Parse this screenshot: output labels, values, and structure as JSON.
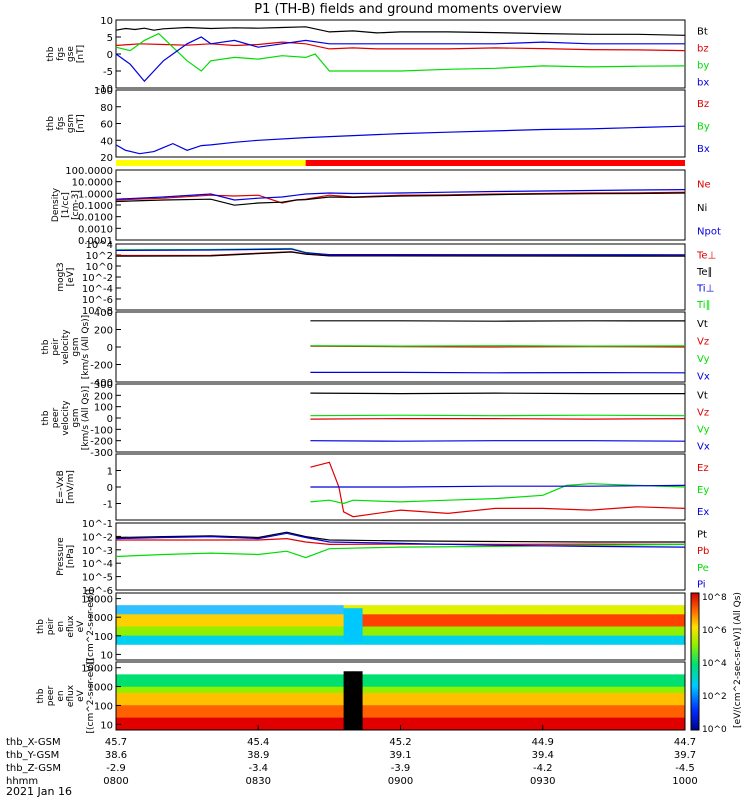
{
  "title": "P1 (TH-B) fields and ground moments overview",
  "date": "2021 Jan 16",
  "colors": {
    "black": "#000000",
    "red": "#e00000",
    "green": "#00dd00",
    "blue": "#0000e0",
    "bar_yellow": "#ffff00",
    "bar_red": "#ff0000"
  },
  "time_axis": {
    "ticks": [
      "0800",
      "0830",
      "0900",
      "0930",
      "1000"
    ],
    "rows": [
      {
        "label": "thb_X-GSM",
        "values": [
          "45.7",
          "45.4",
          "45.2",
          "44.9",
          "44.7"
        ]
      },
      {
        "label": "thb_Y-GSM",
        "values": [
          "38.6",
          "38.9",
          "39.1",
          "39.4",
          "39.7"
        ]
      },
      {
        "label": "thb_Z-GSM",
        "values": [
          "-2.9",
          "-3.4",
          "-3.9",
          "-4.2",
          "-4.5"
        ]
      },
      {
        "label": "hhmm",
        "values": []
      }
    ]
  },
  "colorbar": {
    "unit_label": "[eV/(cm^2-sec-sr-eV)] (All Qs)",
    "tick_labels": [
      "10^8",
      "10^6",
      "10^4",
      "10^2",
      "10^0"
    ]
  },
  "chart_data": [
    {
      "type": "line",
      "ylabel": [
        "thb",
        "fgs",
        "gse",
        "[nT]"
      ],
      "ylim": [
        -10,
        10
      ],
      "yticks": [
        "10",
        "5",
        "0",
        "-5",
        "-10"
      ],
      "series": [
        {
          "name": "Bt",
          "color": "black",
          "x": [
            0,
            2,
            4,
            6,
            8,
            10,
            15,
            20,
            25,
            30,
            35,
            40,
            45,
            50,
            55,
            60,
            70,
            80,
            90,
            100,
            110,
            120
          ],
          "values": [
            7,
            7.5,
            7.2,
            7.6,
            7,
            7.4,
            7.8,
            7.5,
            7.7,
            7.6,
            7.8,
            8,
            6.5,
            6.8,
            6.2,
            6.5,
            6.5,
            6.3,
            6,
            5.8,
            5.8,
            5.5
          ]
        },
        {
          "name": "bz",
          "color": "red",
          "x": [
            0,
            5,
            10,
            15,
            20,
            25,
            30,
            35,
            40,
            45,
            50,
            55,
            60,
            70,
            80,
            90,
            100,
            110,
            120
          ],
          "values": [
            2.5,
            3,
            2.8,
            2.6,
            3,
            2.5,
            2.8,
            3.5,
            3,
            1.5,
            1.8,
            1.5,
            1.5,
            1.5,
            1.8,
            1.6,
            1.3,
            1.2,
            1
          ]
        },
        {
          "name": "by",
          "color": "green",
          "x": [
            0,
            3,
            6,
            9,
            12,
            15,
            18,
            20,
            25,
            30,
            35,
            40,
            42,
            45,
            50,
            60,
            70,
            80,
            90,
            100,
            110,
            120
          ],
          "values": [
            2,
            1,
            4,
            6,
            2,
            -2,
            -5,
            -2,
            -1,
            -1.5,
            -0.5,
            -1,
            0,
            -5,
            -5,
            -5,
            -4.5,
            -4.2,
            -3.5,
            -3.8,
            -3.6,
            -3.5
          ]
        },
        {
          "name": "bx",
          "color": "blue",
          "x": [
            0,
            3,
            6,
            8,
            10,
            12,
            15,
            18,
            20,
            25,
            30,
            35,
            40,
            45,
            50,
            60,
            70,
            80,
            90,
            100,
            110,
            120
          ],
          "values": [
            0,
            -3,
            -8,
            -5,
            -2,
            0,
            3,
            5,
            3,
            4,
            2,
            3,
            4,
            3,
            3,
            3,
            3,
            3,
            3.5,
            3,
            3,
            3
          ]
        }
      ]
    },
    {
      "type": "line",
      "ylabel": [
        "thb",
        "fgs",
        "gsm",
        "[nT]"
      ],
      "ylim": [
        0,
        100
      ],
      "yticks": [
        "100",
        "80",
        "60",
        "40",
        "20"
      ],
      "series_labels": [
        {
          "name": "Bz",
          "color": "red"
        },
        {
          "name": "By",
          "color": "green"
        },
        {
          "name": "Bx",
          "color": "blue"
        }
      ],
      "series": [
        {
          "name": "Bx",
          "color": "blue",
          "x": [
            0,
            2,
            5,
            8,
            10,
            12,
            15,
            18,
            20,
            25,
            30,
            40,
            50,
            60,
            70,
            80,
            90,
            100,
            110,
            120
          ],
          "values": [
            18,
            10,
            5,
            8,
            14,
            20,
            10,
            17,
            18,
            22,
            25,
            29,
            32,
            35,
            37,
            39,
            41,
            42,
            44,
            46
          ]
        }
      ]
    },
    {
      "type": "line",
      "ylabel": [
        "Density",
        "[1/cc]",
        "[cm-3]"
      ],
      "yscale": "log",
      "ylim": [
        0.0001,
        1000
      ],
      "yticks": [
        "100.0000",
        "10.0000",
        "1.0000",
        "0.1000",
        "0.0100",
        "0.0010",
        "0.0001"
      ],
      "series": [
        {
          "name": "Ne",
          "color": "red",
          "x": [
            0,
            10,
            20,
            25,
            30,
            35,
            38,
            40,
            45,
            50,
            60,
            70,
            80,
            90,
            100,
            110,
            120
          ],
          "values": [
            1,
            1.5,
            3,
            2.5,
            3,
            0.5,
            1,
            1.2,
            3,
            2,
            3,
            3.2,
            4,
            4.5,
            5,
            5.2,
            6
          ]
        },
        {
          "name": "Ni",
          "color": "black",
          "x": [
            0,
            10,
            20,
            25,
            30,
            35,
            38,
            40,
            45,
            50,
            60,
            70,
            80,
            90,
            100,
            110,
            120
          ],
          "values": [
            0.7,
            1,
            1.2,
            0.3,
            0.5,
            0.6,
            1,
            1.1,
            2,
            1.8,
            2.5,
            2.8,
            3.5,
            4,
            4.3,
            4.5,
            5
          ]
        },
        {
          "name": "Npot",
          "color": "blue",
          "x": [
            0,
            10,
            20,
            25,
            30,
            35,
            38,
            40,
            45,
            50,
            60,
            70,
            80,
            90,
            100,
            110,
            120
          ],
          "values": [
            1.2,
            2,
            4,
            1,
            1.5,
            2,
            3,
            4,
            5,
            4.5,
            5,
            6,
            7,
            8,
            9,
            10,
            11
          ]
        }
      ]
    },
    {
      "type": "line",
      "ylabel": [
        "mogt3",
        "[eV]"
      ],
      "yscale": "log",
      "ylim": [
        1e-08,
        10000
      ],
      "yticks": [
        "10^4",
        "10^2",
        "10^0",
        "10^-2",
        "10^-4",
        "10^-6",
        "10^-8"
      ],
      "series_labels": [
        {
          "name": "Te⊥",
          "color": "red"
        },
        {
          "name": "Te∥",
          "color": "black"
        },
        {
          "name": "Ti⊥",
          "color": "blue"
        },
        {
          "name": "Ti∥",
          "color": "green"
        }
      ],
      "series": [
        {
          "name": "Ti∥",
          "color": "green",
          "x": [
            0,
            20,
            37,
            40,
            45,
            120
          ],
          "values": [
            900,
            1000,
            1500,
            300,
            100,
            100
          ]
        },
        {
          "name": "Te⊥",
          "color": "red",
          "x": [
            0,
            20,
            37,
            40,
            45,
            120
          ],
          "values": [
            80,
            90,
            400,
            150,
            80,
            70
          ]
        },
        {
          "name": "Te∥",
          "color": "black",
          "x": [
            0,
            20,
            37,
            40,
            45,
            120
          ],
          "values": [
            60,
            70,
            350,
            140,
            70,
            60
          ]
        },
        {
          "name": "Ti⊥",
          "color": "blue",
          "x": [
            0,
            20,
            37,
            40,
            45,
            120
          ],
          "values": [
            700,
            800,
            1200,
            250,
            120,
            110
          ]
        }
      ]
    },
    {
      "type": "line",
      "ylabel": [
        "thb",
        "peir",
        "velocity",
        "gsm",
        "[km/s (All Qs)]"
      ],
      "ylim": [
        -400,
        400
      ],
      "yticks": [
        "400",
        "200",
        "0",
        "-200",
        "-400"
      ],
      "series": [
        {
          "name": "Vt",
          "color": "black",
          "x": [
            41,
            60,
            80,
            100,
            120
          ],
          "values": [
            300,
            300,
            295,
            300,
            298
          ]
        },
        {
          "name": "Vz",
          "color": "red",
          "x": [
            41,
            60,
            80,
            100,
            120
          ],
          "values": [
            10,
            5,
            0,
            5,
            0
          ]
        },
        {
          "name": "Vy",
          "color": "green",
          "x": [
            41,
            60,
            80,
            100,
            120
          ],
          "values": [
            15,
            10,
            15,
            10,
            12
          ]
        },
        {
          "name": "Vx",
          "color": "blue",
          "x": [
            41,
            60,
            80,
            100,
            120
          ],
          "values": [
            -290,
            -290,
            -295,
            -292,
            -295
          ]
        }
      ]
    },
    {
      "type": "line",
      "ylabel": [
        "thb",
        "peer",
        "velocity",
        "gsm",
        "[km/s (All Qs)]"
      ],
      "ylim": [
        -300,
        300
      ],
      "yticks": [
        "300",
        "200",
        "100",
        "0",
        "-100",
        "-200",
        "-300"
      ],
      "series": [
        {
          "name": "Vt",
          "color": "black",
          "x": [
            41,
            60,
            80,
            100,
            120
          ],
          "values": [
            220,
            215,
            220,
            215,
            215
          ]
        },
        {
          "name": "Vz",
          "color": "red",
          "x": [
            41,
            60,
            80,
            100,
            120
          ],
          "values": [
            -10,
            -5,
            -5,
            -10,
            -5
          ]
        },
        {
          "name": "Vy",
          "color": "green",
          "x": [
            41,
            60,
            80,
            100,
            120
          ],
          "values": [
            20,
            25,
            20,
            25,
            20
          ]
        },
        {
          "name": "Vx",
          "color": "blue",
          "x": [
            41,
            60,
            80,
            100,
            120
          ],
          "values": [
            -200,
            -205,
            -200,
            -200,
            -205
          ]
        }
      ]
    },
    {
      "type": "line",
      "ylabel": [
        "E=-VxB",
        "[mV/m]"
      ],
      "ylim": [
        -2,
        2
      ],
      "yticks": [
        "1",
        "0",
        "-1"
      ],
      "series": [
        {
          "name": "Ez",
          "color": "red",
          "x": [
            41,
            45,
            47,
            48,
            50,
            60,
            70,
            80,
            90,
            100,
            110,
            120
          ],
          "values": [
            1.2,
            1.5,
            0,
            -1.5,
            -1.8,
            -1.4,
            -1.6,
            -1.3,
            -1.3,
            -1.4,
            -1.2,
            -1.3
          ]
        },
        {
          "name": "Ey",
          "color": "green",
          "x": [
            41,
            45,
            48,
            50,
            60,
            70,
            80,
            90,
            95,
            100,
            110,
            120
          ],
          "values": [
            -0.9,
            -0.8,
            -1,
            -0.8,
            -0.9,
            -0.8,
            -0.7,
            -0.5,
            0.1,
            0.2,
            0.1,
            0
          ]
        },
        {
          "name": "Ex",
          "color": "blue",
          "x": [
            41,
            48,
            60,
            80,
            100,
            120
          ],
          "values": [
            0,
            0,
            0,
            0.05,
            0.05,
            0.1
          ]
        }
      ]
    },
    {
      "type": "line",
      "ylabel": [
        "Pressure",
        "[nPa]"
      ],
      "yscale": "log",
      "ylim": [
        1e-06,
        1
      ],
      "yticks": [
        "10^-1",
        "10^-2",
        "10^-3",
        "10^-4",
        "10^-5",
        "10^-6"
      ],
      "series": [
        {
          "name": "Pt",
          "color": "black",
          "x": [
            0,
            10,
            20,
            30,
            36,
            40,
            45,
            60,
            80,
            100,
            120
          ],
          "values": [
            0.05,
            0.06,
            0.07,
            0.05,
            0.15,
            0.06,
            0.03,
            0.025,
            0.022,
            0.02,
            0.02
          ]
        },
        {
          "name": "Pb",
          "color": "red",
          "x": [
            0,
            10,
            20,
            30,
            36,
            40,
            45,
            60,
            80,
            100,
            120
          ],
          "values": [
            0.03,
            0.03,
            0.03,
            0.03,
            0.04,
            0.02,
            0.012,
            0.013,
            0.012,
            0.013,
            0.012
          ]
        },
        {
          "name": "Pe",
          "color": "green",
          "x": [
            0,
            10,
            20,
            30,
            36,
            40,
            45,
            60,
            80,
            100,
            120
          ],
          "values": [
            0.001,
            0.0015,
            0.002,
            0.0015,
            0.003,
            0.0008,
            0.005,
            0.007,
            0.008,
            0.01,
            0.012
          ]
        },
        {
          "name": "Pi",
          "color": "blue",
          "x": [
            0,
            10,
            20,
            30,
            36,
            40,
            45,
            60,
            80,
            100,
            120
          ],
          "values": [
            0.04,
            0.05,
            0.06,
            0.04,
            0.12,
            0.05,
            0.02,
            0.015,
            0.01,
            0.008,
            0.007
          ]
        }
      ]
    },
    {
      "type": "heatmap",
      "ylabel": [
        "thb",
        "peir",
        "en",
        "eflux",
        "eV",
        "[(cm^2-s-sr-eV)]"
      ],
      "yscale": "log",
      "ylim": [
        5,
        20000
      ],
      "yticks": [
        "10000",
        "1000",
        "100",
        "10"
      ]
    },
    {
      "type": "heatmap",
      "ylabel": [
        "thb",
        "peer",
        "en",
        "eflux",
        "eV",
        "[(cm^2-s-sr-eV)]"
      ],
      "yscale": "log",
      "ylim": [
        5,
        20000
      ],
      "yticks": [
        "10000",
        "1000",
        "100",
        "10"
      ]
    }
  ]
}
